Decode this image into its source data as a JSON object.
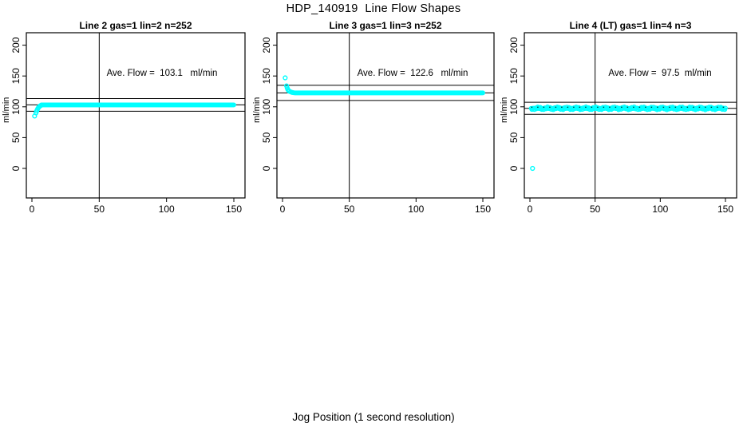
{
  "title": "HDP_140919  Line Flow Shapes",
  "xlabel": "Jog Position (1 second resolution)",
  "colors": {
    "points": "#00FFFF",
    "axis": "#000000",
    "background": "#FFFFFF"
  },
  "axes": {
    "x_ticks": [
      0,
      50,
      100,
      150
    ],
    "y_ticks": [
      0,
      50,
      100,
      150,
      200
    ],
    "xlim": [
      0,
      150
    ],
    "ylim": [
      0,
      200
    ]
  },
  "chart_data": [
    {
      "type": "scatter",
      "title": "Line 2 gas=1 lin=2 n=252",
      "annotation": "Ave. Flow =  103.1   ml/min",
      "ave_flow_ml_min": 103.1,
      "n": 252,
      "ylabel": "ml/min",
      "ref_lines": {
        "mean": 103.1,
        "upper_10pct": 113.4,
        "lower_10pct": 92.8,
        "vline_x": 50
      },
      "transient_points": [
        [
          2,
          85
        ],
        [
          3,
          90
        ],
        [
          3.5,
          93
        ],
        [
          4,
          95.5
        ],
        [
          4.5,
          97.5
        ],
        [
          5,
          99
        ],
        [
          5.5,
          100.3
        ],
        [
          6,
          101.3
        ],
        [
          6.5,
          102
        ],
        [
          7,
          102.5
        ]
      ],
      "steady": {
        "x_from": 7,
        "x_to": 150,
        "y": 103.1
      },
      "noisy": false
    },
    {
      "type": "scatter",
      "title": "Line 3 gas=1 lin=3 n=252",
      "annotation": "Ave. Flow =  122.6   ml/min",
      "ave_flow_ml_min": 122.6,
      "n": 252,
      "ylabel": "ml/min",
      "ref_lines": {
        "mean": 122.6,
        "upper_10pct": 134.9,
        "lower_10pct": 110.3,
        "vline_x": 50
      },
      "transient_points": [
        [
          2,
          147
        ],
        [
          3,
          134
        ],
        [
          3.5,
          130.5
        ],
        [
          4,
          128
        ],
        [
          4.5,
          126.3
        ],
        [
          5,
          125.2
        ],
        [
          6,
          124.2
        ],
        [
          7,
          123.4
        ],
        [
          8,
          123
        ]
      ],
      "steady": {
        "x_from": 9,
        "x_to": 150,
        "y": 122.6
      },
      "noisy": false
    },
    {
      "type": "scatter",
      "title": "Line 4 (LT) gas=1 lin=4 n=3",
      "annotation": "Ave. Flow =  97.5  ml/min",
      "ave_flow_ml_min": 97.5,
      "n": 3,
      "ylabel": "ml/min",
      "ref_lines": {
        "mean": 97.5,
        "upper_10pct": 107.3,
        "lower_10pct": 87.8,
        "vline_x": 50
      },
      "transient_points": [
        [
          2,
          0
        ]
      ],
      "steady": {
        "x_from": 1,
        "x_to": 150,
        "y": 97.5
      },
      "noisy": true
    }
  ]
}
